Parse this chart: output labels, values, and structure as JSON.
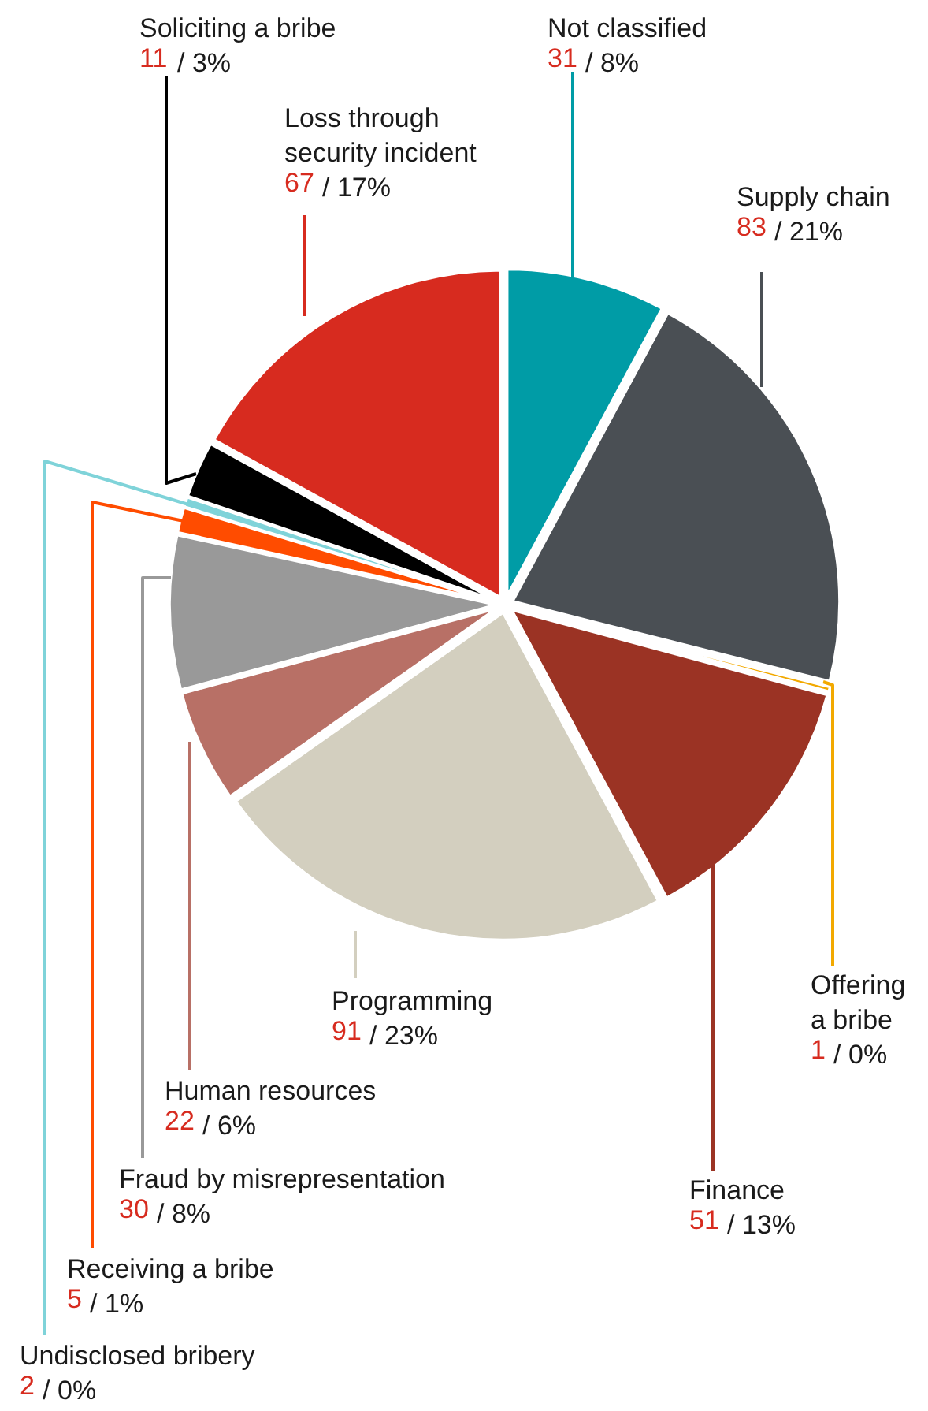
{
  "chart_data": {
    "type": "pie",
    "categories": [
      "Not classified",
      "Supply chain",
      "Offering a bribe",
      "Finance",
      "Programming",
      "Human resources",
      "Fraud by misrepresentation",
      "Receiving a bribe",
      "Undisclosed bribery",
      "Soliciting a bribe",
      "Loss through security incident"
    ],
    "values": [
      31,
      83,
      1,
      51,
      91,
      22,
      30,
      5,
      2,
      11,
      67
    ],
    "colors": [
      "#009ca6",
      "#4a4f54",
      "#f2a900",
      "#9b3324",
      "#d3cfbf",
      "#b87066",
      "#999999",
      "#ff4c00",
      "#7fd3d9",
      "#000000",
      "#d72b1f"
    ],
    "value_labels": [
      "31 / 8%",
      "83 / 21%",
      "1 / 0%",
      "51 / 13%",
      "91 / 23%",
      "22 / 6%",
      "30 / 8%",
      "5 / 1%",
      "2 / 0%",
      "11 / 3%",
      "67 / 17%"
    ]
  }
}
